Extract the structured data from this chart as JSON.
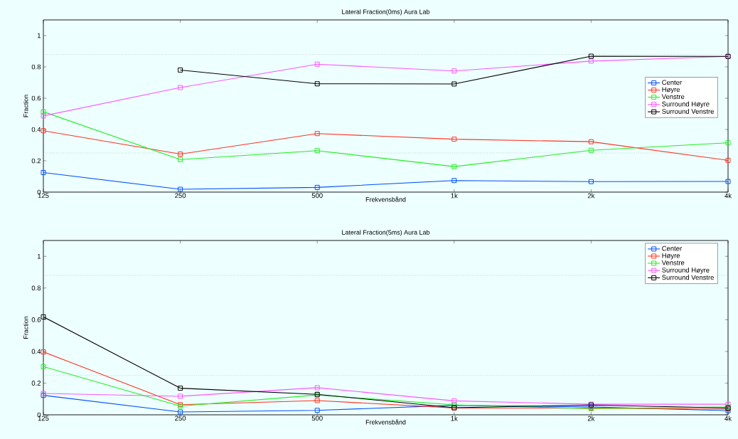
{
  "chart_data": [
    {
      "type": "line",
      "title": "Lateral Fraction(0ms) Aura Lab",
      "xlabel": "Frekvensbånd",
      "ylabel": "Fraction",
      "categories": [
        "125",
        "250",
        "500",
        "1k",
        "2k",
        "4k"
      ],
      "series": [
        {
          "name": "Center",
          "color": "#0050ff",
          "values": [
            0.125,
            0.018,
            0.03,
            0.074,
            0.067,
            0.068
          ]
        },
        {
          "name": "Høyre",
          "color": "#ff3322",
          "values": [
            0.392,
            0.243,
            0.374,
            0.338,
            0.322,
            0.203
          ]
        },
        {
          "name": "Venstre",
          "color": "#22ee22",
          "values": [
            0.513,
            0.208,
            0.265,
            0.163,
            0.267,
            0.315
          ]
        },
        {
          "name": "Surround Høyre",
          "color": "#ff55ff",
          "values": [
            0.487,
            0.668,
            0.817,
            0.774,
            0.837,
            0.867
          ]
        },
        {
          "name": "Surround Venstre",
          "color": "#000000",
          "values": [
            null,
            0.78,
            0.692,
            0.691,
            0.868,
            0.867
          ]
        }
      ],
      "ylim": [
        0,
        1.1
      ],
      "yticks": [
        0,
        0.2,
        0.4,
        0.6,
        0.8,
        1
      ],
      "ref_lines": [
        {
          "axis": "y",
          "value": 0.88,
          "color": "#888888",
          "line_style": "dotted"
        },
        {
          "axis": "y",
          "value": 0.25,
          "color": "#888888",
          "line_style": "dotted"
        }
      ],
      "grid": false,
      "legend": "right",
      "marker": "square",
      "line_style": "solid"
    },
    {
      "type": "line",
      "title": "Lateral Fraction(5ms) Aura Lab",
      "xlabel": "Frekvensbånd",
      "ylabel": "Fraction",
      "categories": [
        "125",
        "250",
        "500",
        "1k",
        "2k",
        "4k"
      ],
      "series": [
        {
          "name": "Center",
          "color": "#0050ff",
          "values": [
            0.123,
            0.018,
            0.028,
            0.06,
            0.05,
            0.026
          ]
        },
        {
          "name": "Høyre",
          "color": "#ff3322",
          "values": [
            0.397,
            0.064,
            0.09,
            0.043,
            0.042,
            0.036
          ]
        },
        {
          "name": "Venstre",
          "color": "#22ee22",
          "values": [
            0.304,
            0.055,
            0.125,
            0.063,
            0.039,
            0.05
          ]
        },
        {
          "name": "Surround Høyre",
          "color": "#ff55ff",
          "values": [
            0.135,
            0.117,
            0.171,
            0.088,
            0.067,
            0.067
          ]
        },
        {
          "name": "Surround Venstre",
          "color": "#000000",
          "values": [
            0.618,
            0.168,
            0.129,
            0.045,
            0.062,
            0.043
          ]
        }
      ],
      "ylim": [
        0,
        1.1
      ],
      "yticks": [
        0,
        0.2,
        0.4,
        0.6,
        0.8,
        1
      ],
      "ref_lines": [
        {
          "axis": "y",
          "value": 0.88,
          "color": "#888888",
          "line_style": "dotted"
        },
        {
          "axis": "y",
          "value": 0.25,
          "color": "#888888",
          "line_style": "dotted"
        }
      ],
      "grid": false,
      "legend": "top right",
      "marker": "square",
      "line_style": "solid"
    }
  ]
}
